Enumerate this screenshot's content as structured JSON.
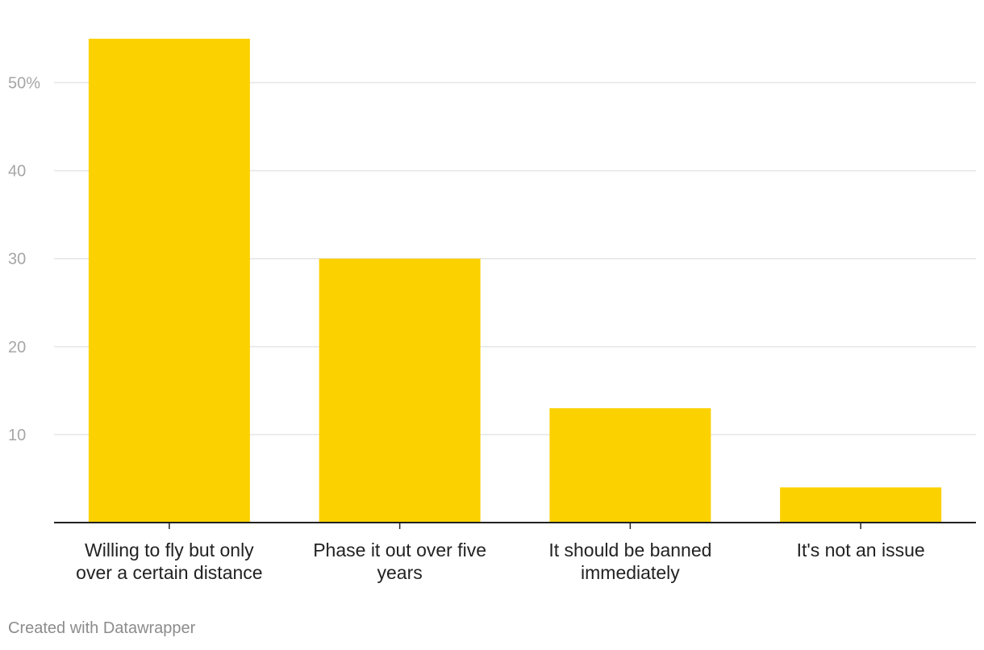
{
  "chart_data": {
    "type": "bar",
    "categories": [
      [
        "Willing to fly but only",
        "over a certain distance"
      ],
      [
        "Phase it out over five",
        "years"
      ],
      [
        "It should be banned",
        "immediately"
      ],
      [
        "It's not an issue"
      ]
    ],
    "values": [
      55,
      30,
      13,
      4
    ],
    "ylim": [
      0,
      55
    ],
    "yticks": [
      10,
      20,
      30,
      40,
      50
    ],
    "ytick_labels": [
      "10",
      "20",
      "30",
      "40",
      "50%"
    ],
    "grid": true,
    "bar_color": "#fcd100",
    "gridline_color": "#e5e5e5",
    "axis_color": "#222222"
  },
  "footer": {
    "credit": "Created with Datawrapper"
  }
}
